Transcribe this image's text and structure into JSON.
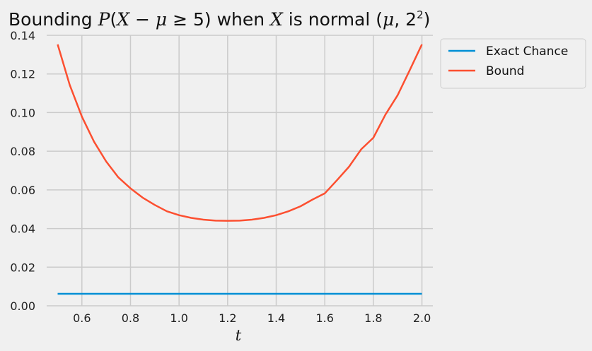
{
  "chart_data": {
    "type": "line",
    "title": {
      "prefix": "Bounding ",
      "p": "P",
      "open": "(",
      "x": "X",
      "minus": " − ",
      "mu": "μ",
      "geq": " ≥ 5)",
      "when": " when ",
      "x2": "X",
      "is_normal": " is normal (",
      "mu2": "μ",
      "comma": ", 2",
      "sup": "2",
      "close": ")"
    },
    "xlabel": "t",
    "ylabel": "",
    "xlim": [
      0.455,
      2.045
    ],
    "ylim": [
      0.0,
      0.14
    ],
    "xticks": [
      "0.6",
      "0.8",
      "1.0",
      "1.2",
      "1.4",
      "1.6",
      "1.8",
      "2.0"
    ],
    "yticks": [
      "0.00",
      "0.02",
      "0.04",
      "0.06",
      "0.08",
      "0.10",
      "0.12",
      "0.14"
    ],
    "grid": true,
    "legend_position": "outside-right-top",
    "series": [
      {
        "name": "Exact Chance",
        "color": "#008fd5",
        "x": [
          0.5,
          2.0
        ],
        "y": [
          0.0062,
          0.0062
        ]
      },
      {
        "name": "Bound",
        "color": "#fc4f30",
        "x": [
          0.5,
          0.55,
          0.6,
          0.65,
          0.7,
          0.75,
          0.8,
          0.85,
          0.9,
          0.95,
          1.0,
          1.05,
          1.1,
          1.15,
          1.2,
          1.25,
          1.3,
          1.35,
          1.4,
          1.45,
          1.5,
          1.55,
          1.6,
          1.65,
          1.7,
          1.75,
          1.8,
          1.85,
          1.9,
          1.95,
          2.0
        ],
        "y": [
          0.1353,
          0.1143,
          0.0979,
          0.0849,
          0.0747,
          0.0665,
          0.0608,
          0.056,
          0.0522,
          0.0489,
          0.0469,
          0.0455,
          0.0446,
          0.0441,
          0.044,
          0.0441,
          0.0446,
          0.0455,
          0.0469,
          0.0489,
          0.0515,
          0.055,
          0.0582,
          0.065,
          0.072,
          0.081,
          0.087,
          0.099,
          0.109,
          0.122,
          0.1353
        ]
      }
    ]
  }
}
